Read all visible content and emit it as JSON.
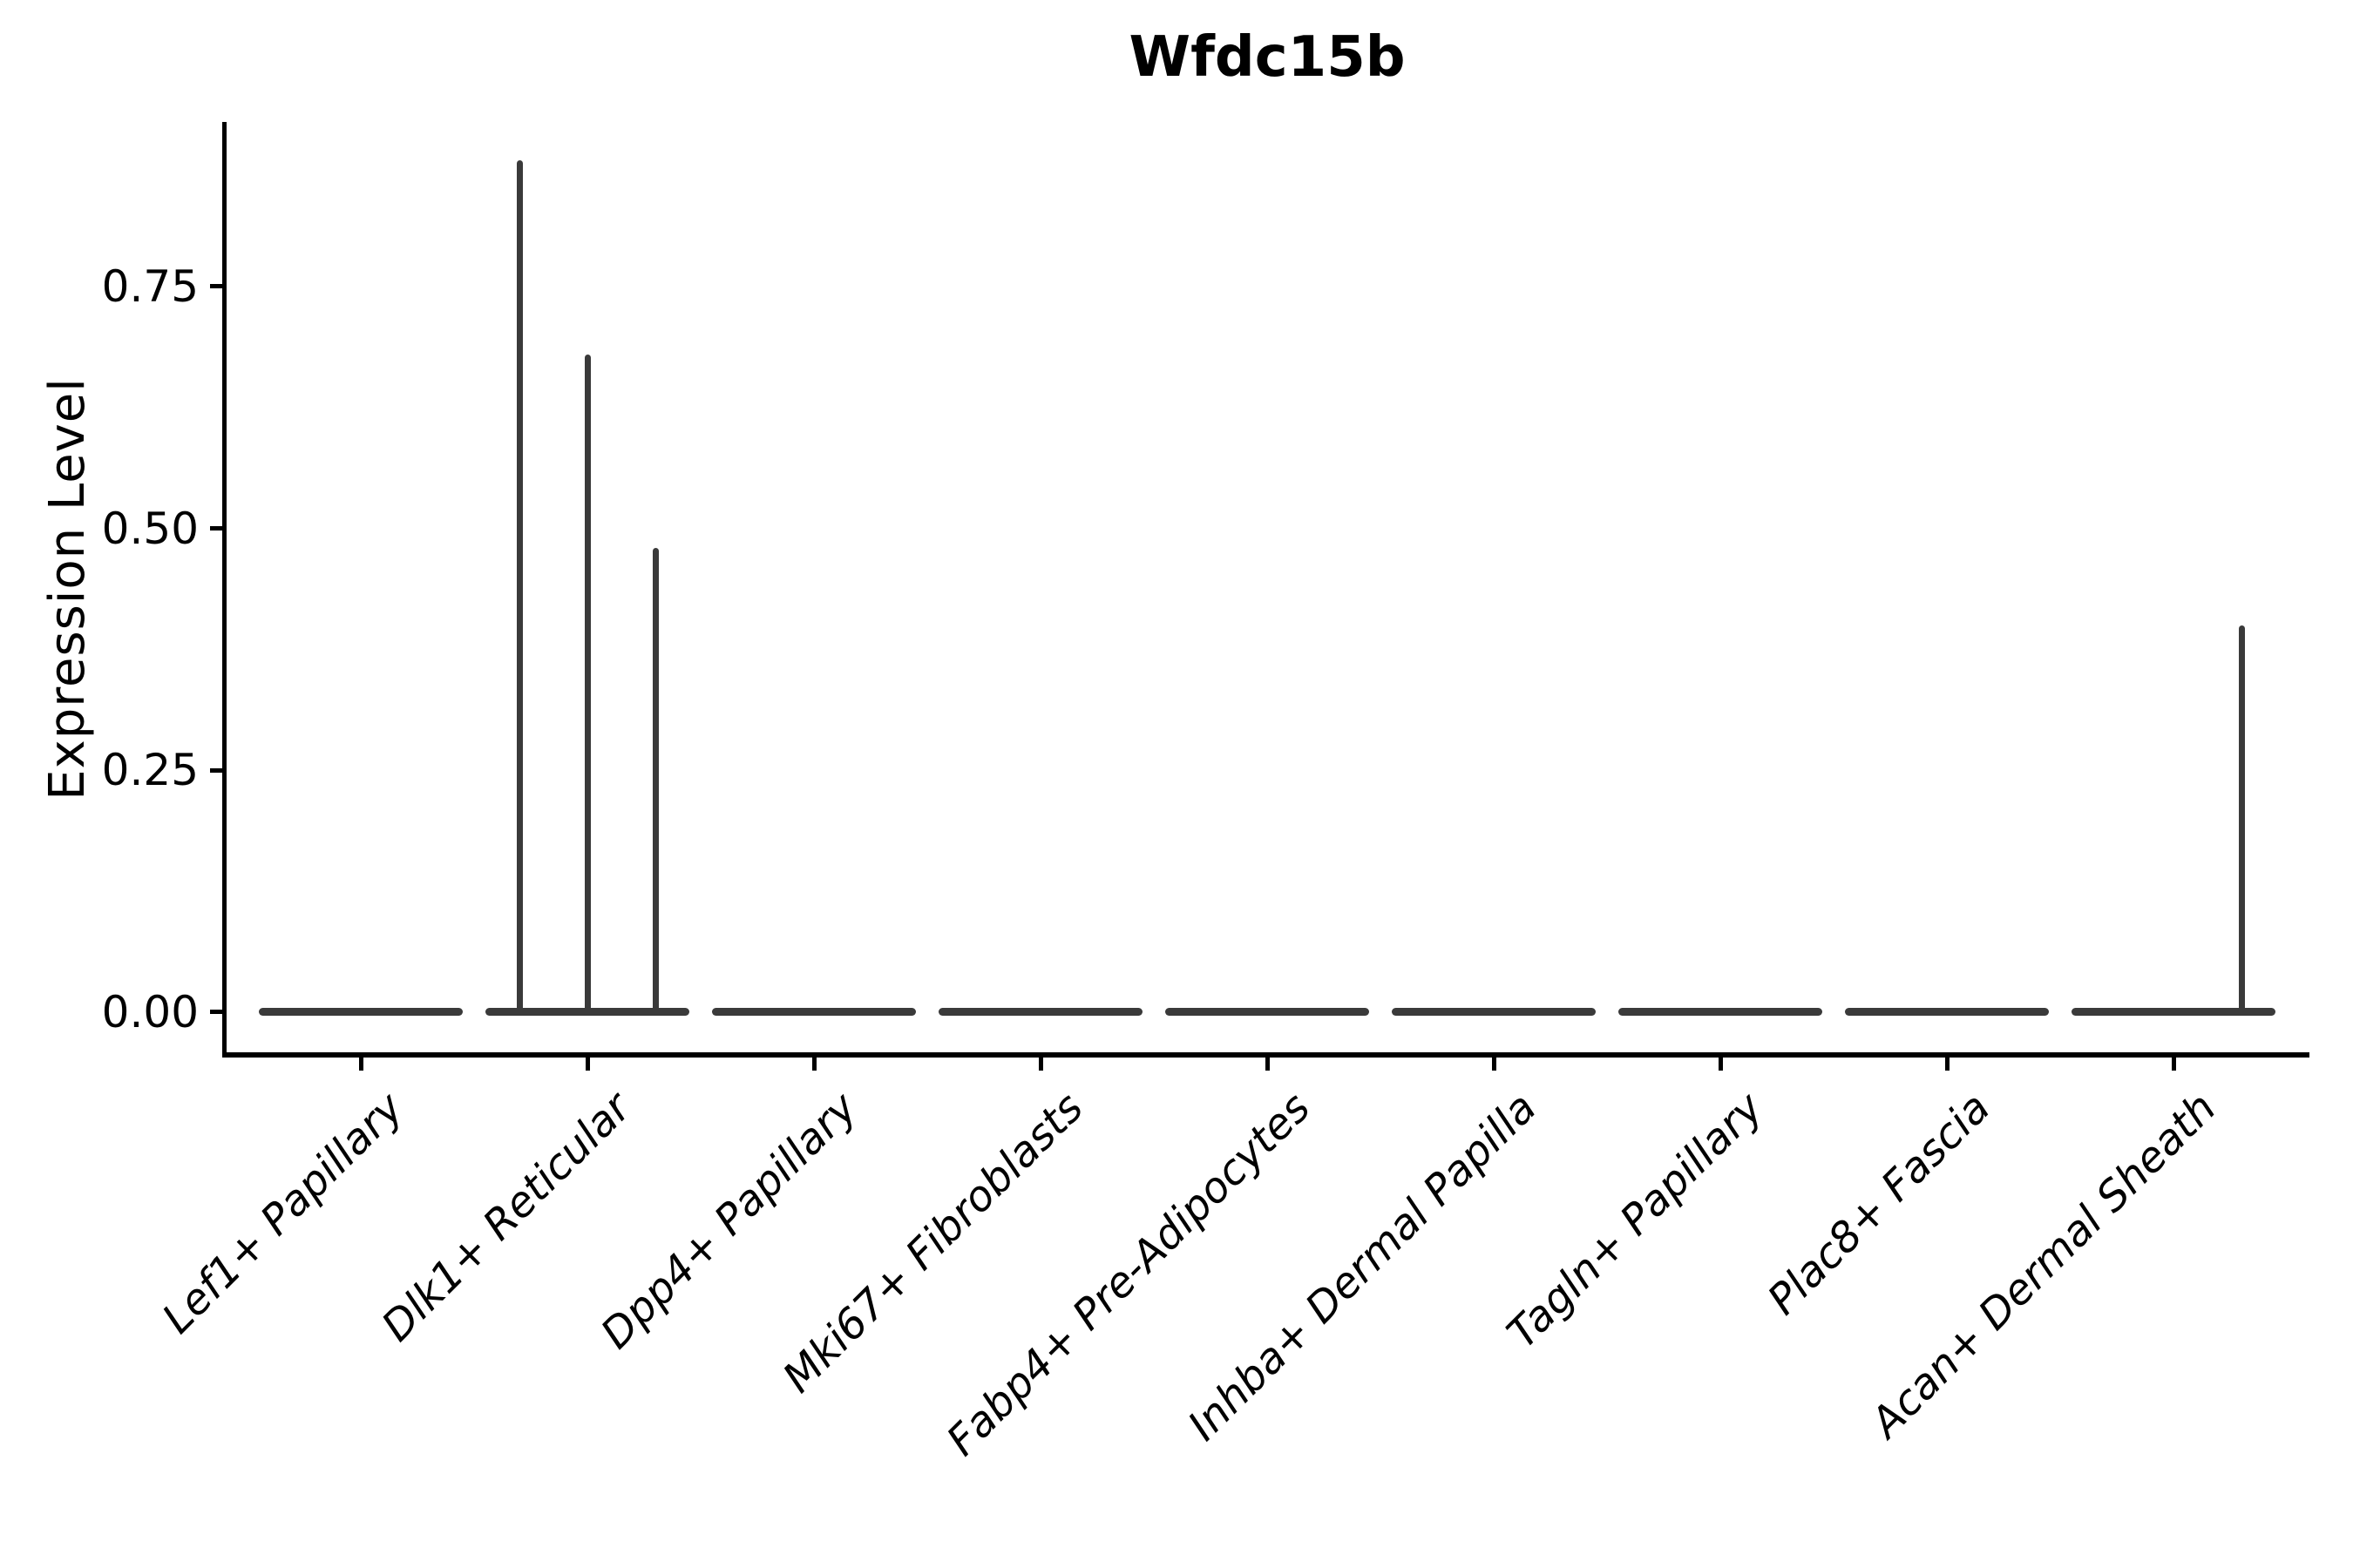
{
  "chart_data": {
    "type": "violin",
    "title": "Wfdc15b",
    "ylabel": "Expression Level",
    "xlabel": "",
    "categories": [
      "Lef1+ Papillary",
      "Dlk1+ Reticular",
      "Dpp4+ Papillary",
      "Mki67+ Fibroblasts",
      "Fabp4+ Pre-Adipocytes",
      "Inhba+ Dermal Papilla",
      "Tagln+ Papillary",
      "Plac8+ Fascia",
      "Acan+ Dermal Sheath"
    ],
    "groups_per_category": 3,
    "series": [
      {
        "category": "Lef1+ Papillary",
        "max_expression": [
          0,
          0,
          0
        ]
      },
      {
        "category": "Dlk1+ Reticular",
        "max_expression": [
          0.88,
          0.68,
          0.48
        ]
      },
      {
        "category": "Dpp4+ Papillary",
        "max_expression": [
          0,
          0,
          0
        ]
      },
      {
        "category": "Mki67+ Fibroblasts",
        "max_expression": [
          0,
          0,
          0
        ]
      },
      {
        "category": "Fabp4+ Pre-Adipocytes",
        "max_expression": [
          0,
          0,
          0
        ]
      },
      {
        "category": "Inhba+ Dermal Papilla",
        "max_expression": [
          0,
          0,
          0
        ]
      },
      {
        "category": "Tagln+ Papillary",
        "max_expression": [
          0,
          0,
          0
        ]
      },
      {
        "category": "Plac8+ Fascia",
        "max_expression": [
          0,
          0,
          0
        ]
      },
      {
        "category": "Acan+ Dermal Sheath",
        "max_expression": [
          0,
          0,
          0.4
        ]
      }
    ],
    "y_ticks": [
      0,
      0.25,
      0.5,
      0.75
    ],
    "y_tick_labels": [
      "0.00",
      "0.25",
      "0.50",
      "0.75"
    ],
    "ylim": [
      -0.046,
      0.92
    ],
    "grid": false,
    "legend": "none",
    "violin_color": "#3a3a3a",
    "axis_color": "#000000",
    "style_note": "violins are almost fully collapsed: flat bars at expression 0 with thin vertical density spikes where a few cells express the gene"
  }
}
